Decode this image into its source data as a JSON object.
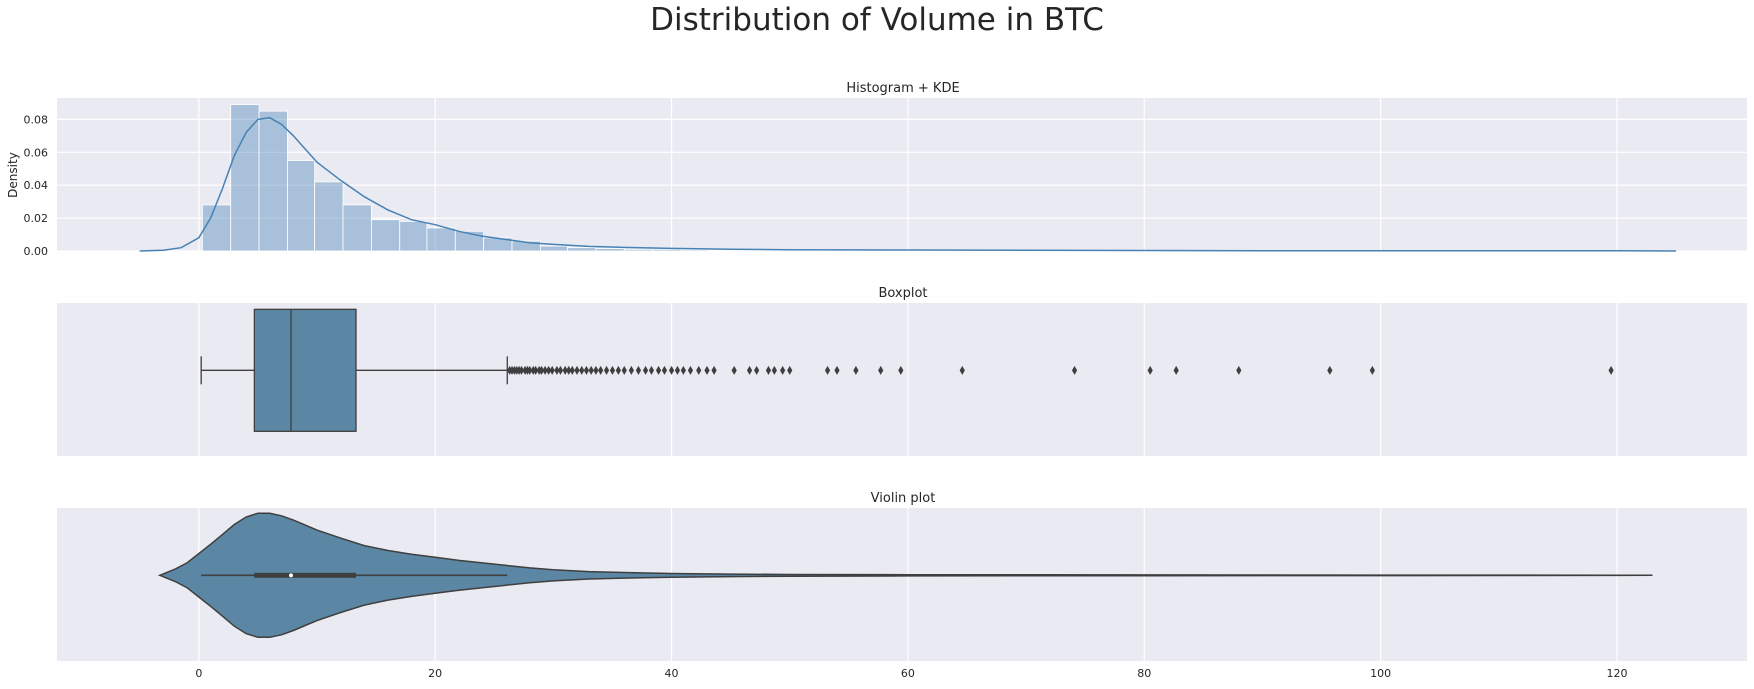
{
  "figure": {
    "title": "Distribution of Volume in BTC"
  },
  "chart_data": [
    {
      "type": "histogram",
      "title": "Histogram + KDE",
      "xlabel": "",
      "ylabel": "Density",
      "xlim": [
        -12,
        131
      ],
      "ylim": [
        0,
        0.093
      ],
      "x_ticks": [
        0,
        20,
        40,
        60,
        80,
        100,
        120
      ],
      "y_ticks": [
        0.0,
        0.02,
        0.04,
        0.06,
        0.08
      ],
      "y_tick_labels": [
        "0.00",
        "0.02",
        "0.04",
        "0.06",
        "0.08"
      ],
      "grid": true,
      "bins": [
        {
          "x0": 0.3,
          "x1": 2.7,
          "density": 0.028
        },
        {
          "x0": 2.7,
          "x1": 5.1,
          "density": 0.089
        },
        {
          "x0": 5.1,
          "x1": 7.5,
          "density": 0.085
        },
        {
          "x0": 7.5,
          "x1": 9.8,
          "density": 0.055
        },
        {
          "x0": 9.8,
          "x1": 12.2,
          "density": 0.042
        },
        {
          "x0": 12.2,
          "x1": 14.6,
          "density": 0.028
        },
        {
          "x0": 14.6,
          "x1": 17.0,
          "density": 0.019
        },
        {
          "x0": 17.0,
          "x1": 19.3,
          "density": 0.018
        },
        {
          "x0": 19.3,
          "x1": 21.7,
          "density": 0.014
        },
        {
          "x0": 21.7,
          "x1": 24.1,
          "density": 0.012
        },
        {
          "x0": 24.1,
          "x1": 26.5,
          "density": 0.008
        },
        {
          "x0": 26.5,
          "x1": 28.9,
          "density": 0.006
        },
        {
          "x0": 28.9,
          "x1": 31.2,
          "density": 0.003
        },
        {
          "x0": 31.2,
          "x1": 33.6,
          "density": 0.002
        },
        {
          "x0": 33.6,
          "x1": 36.0,
          "density": 0.0015
        },
        {
          "x0": 36.0,
          "x1": 38.4,
          "density": 0.001
        },
        {
          "x0": 38.4,
          "x1": 40.8,
          "density": 0.001
        },
        {
          "x0": 40.8,
          "x1": 43.1,
          "density": 0.0007
        },
        {
          "x0": 43.1,
          "x1": 45.5,
          "density": 0.0005
        },
        {
          "x0": 45.5,
          "x1": 47.9,
          "density": 0.0004
        },
        {
          "x0": 47.9,
          "x1": 50.3,
          "density": 0.0003
        }
      ],
      "kde": {
        "x": [
          -5,
          -3,
          -1.5,
          0,
          1,
          2,
          3,
          4,
          5,
          6,
          7,
          8,
          9,
          10,
          12,
          14,
          16,
          18,
          20,
          22,
          24,
          26,
          28,
          30,
          33,
          36,
          40,
          45,
          50,
          60,
          70,
          80,
          90,
          100,
          110,
          120,
          125
        ],
        "y": [
          0,
          0.0005,
          0.002,
          0.008,
          0.02,
          0.038,
          0.058,
          0.072,
          0.08,
          0.081,
          0.077,
          0.07,
          0.062,
          0.054,
          0.043,
          0.033,
          0.025,
          0.019,
          0.016,
          0.012,
          0.009,
          0.007,
          0.005,
          0.004,
          0.0028,
          0.0022,
          0.0016,
          0.0011,
          0.0008,
          0.0006,
          0.0004,
          0.0003,
          0.0002,
          0.0002,
          0.0001,
          0.0001,
          0
        ]
      },
      "colors": {
        "bar": "#4682b4",
        "kde": "#4682b4",
        "background": "#eaeaf2",
        "grid": "#ffffff"
      }
    },
    {
      "type": "boxplot",
      "title": "Boxplot",
      "xlim": [
        -12,
        131
      ],
      "x_ticks": [
        0,
        20,
        40,
        60,
        80,
        100,
        120
      ],
      "grid": true,
      "stats": {
        "whisker_low": 0.2,
        "q1": 4.7,
        "median": 7.8,
        "q3": 13.3,
        "whisker_high": 26.1
      },
      "outliers": [
        26.3,
        26.5,
        26.7,
        26.9,
        27.1,
        27.3,
        27.6,
        27.8,
        28.0,
        28.3,
        28.5,
        28.8,
        29.0,
        29.3,
        29.6,
        29.9,
        30.3,
        30.6,
        31.0,
        31.3,
        31.6,
        32.0,
        32.4,
        32.8,
        33.2,
        33.6,
        34.0,
        34.5,
        35.0,
        35.5,
        36.0,
        36.6,
        37.2,
        37.8,
        38.3,
        38.9,
        39.4,
        40.0,
        40.5,
        41.0,
        41.6,
        42.3,
        43.0,
        43.6,
        45.3,
        46.6,
        47.2,
        48.2,
        48.7,
        49.4,
        50.0,
        53.2,
        54.0,
        55.6,
        57.7,
        59.4,
        64.6,
        74.1,
        80.5,
        82.7,
        88.0,
        95.7,
        99.3,
        119.5
      ],
      "colors": {
        "box": "#5b87a5",
        "line": "#3f3f3f",
        "outlier": "#3f3f3f"
      }
    },
    {
      "type": "violin",
      "title": "Violin plot",
      "xlim": [
        -12,
        131
      ],
      "x_ticks": [
        0,
        20,
        40,
        60,
        80,
        100,
        120
      ],
      "x_tick_labels": [
        "0",
        "20",
        "40",
        "60",
        "80",
        "100",
        "120"
      ],
      "grid": true,
      "density": {
        "x": [
          -3.3,
          -2,
          -1,
          0,
          1,
          2,
          3,
          4,
          5,
          6,
          7,
          8,
          9,
          10,
          12,
          14,
          16,
          18,
          20,
          22,
          24,
          26,
          28,
          30,
          33,
          36,
          40,
          45,
          50,
          60,
          70,
          80,
          90,
          100,
          110,
          120,
          123
        ],
        "w": [
          0.0,
          0.1,
          0.2,
          0.35,
          0.5,
          0.66,
          0.82,
          0.94,
          1.0,
          1.0,
          0.96,
          0.89,
          0.81,
          0.73,
          0.6,
          0.48,
          0.4,
          0.34,
          0.29,
          0.24,
          0.2,
          0.16,
          0.12,
          0.09,
          0.06,
          0.045,
          0.03,
          0.02,
          0.014,
          0.01,
          0.008,
          0.006,
          0.005,
          0.004,
          0.003,
          0.002,
          0.0
        ]
      },
      "inner_box": {
        "whisker_low": 0.2,
        "q1": 4.7,
        "median": 7.8,
        "q3": 13.3,
        "whisker_high": 26.1
      },
      "colors": {
        "body": "#5b87a5",
        "line": "#3f3f3f",
        "median": "#ffffff"
      }
    }
  ]
}
